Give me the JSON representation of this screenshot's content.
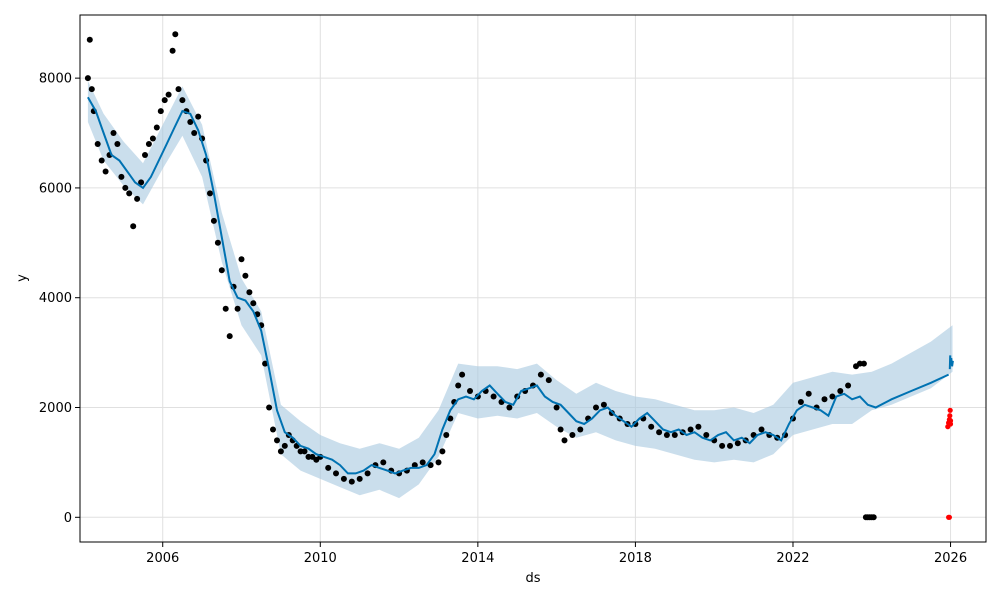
{
  "chart_data": {
    "type": "line",
    "title": "",
    "xlabel": "ds",
    "ylabel": "y",
    "xlim": [
      2003.9,
      2026.9
    ],
    "ylim": [
      -450,
      9150
    ],
    "x_ticks": [
      2006,
      2010,
      2014,
      2018,
      2022,
      2026
    ],
    "x_tick_labels": [
      "2006",
      "2010",
      "2014",
      "2018",
      "2022",
      "2026"
    ],
    "y_ticks": [
      0,
      2000,
      4000,
      6000,
      8000
    ],
    "y_tick_labels": [
      "0",
      "2000",
      "4000",
      "6000",
      "8000"
    ],
    "grid": true,
    "legend": "none",
    "colors": {
      "observed": "#000000",
      "forecast": "#0072B2",
      "interval": "#a6c8e0",
      "anomaly": "#ff0000"
    },
    "series": [
      {
        "role": "observed",
        "marker": "dot",
        "x": [
          2004.1,
          2004.15,
          2004.2,
          2004.25,
          2004.35,
          2004.45,
          2004.55,
          2004.65,
          2004.75,
          2004.85,
          2004.95,
          2005.05,
          2005.15,
          2005.25,
          2005.35,
          2005.45,
          2005.55,
          2005.65,
          2005.75,
          2005.85,
          2005.95,
          2006.05,
          2006.15,
          2006.25,
          2006.32,
          2006.4,
          2006.5,
          2006.6,
          2006.7,
          2006.8,
          2006.9,
          2007.0,
          2007.1,
          2007.2,
          2007.3,
          2007.4,
          2007.5,
          2007.6,
          2007.7,
          2007.8,
          2007.9,
          2008.0,
          2008.1,
          2008.2,
          2008.3,
          2008.4,
          2008.5,
          2008.6,
          2008.7,
          2008.8,
          2008.9,
          2009.0,
          2009.1,
          2009.2,
          2009.3,
          2009.4,
          2009.5,
          2009.6,
          2009.7,
          2009.8,
          2009.9,
          2010.0,
          2010.2,
          2010.4,
          2010.6,
          2010.8,
          2011.0,
          2011.2,
          2011.4,
          2011.6,
          2011.8,
          2012.0,
          2012.2,
          2012.4,
          2012.6,
          2012.8,
          2013.0,
          2013.1,
          2013.2,
          2013.3,
          2013.4,
          2013.5,
          2013.6,
          2013.8,
          2014.0,
          2014.2,
          2014.4,
          2014.6,
          2014.8,
          2015.0,
          2015.2,
          2015.4,
          2015.6,
          2015.8,
          2016.0,
          2016.1,
          2016.2,
          2016.4,
          2016.6,
          2016.8,
          2017.0,
          2017.2,
          2017.4,
          2017.6,
          2017.8,
          2018.0,
          2018.2,
          2018.4,
          2018.6,
          2018.8,
          2019.0,
          2019.2,
          2019.4,
          2019.6,
          2019.8,
          2020.0,
          2020.2,
          2020.4,
          2020.6,
          2020.8,
          2021.0,
          2021.2,
          2021.4,
          2021.6,
          2021.8,
          2022.0,
          2022.2,
          2022.4,
          2022.6,
          2022.8,
          2023.0,
          2023.2,
          2023.4,
          2023.6,
          2023.7,
          2023.8
        ],
        "y": [
          8000,
          8700,
          7800,
          7400,
          6800,
          6500,
          6300,
          6600,
          7000,
          6800,
          6200,
          6000,
          5900,
          5300,
          5800,
          6100,
          6600,
          6800,
          6900,
          7100,
          7400,
          7600,
          7700,
          8500,
          8800,
          7800,
          7600,
          7400,
          7200,
          7000,
          7300,
          6900,
          6500,
          5900,
          5400,
          5000,
          4500,
          3800,
          3300,
          4200,
          3800,
          4700,
          4400,
          4100,
          3900,
          3700,
          3500,
          2800,
          2000,
          1600,
          1400,
          1200,
          1300,
          1500,
          1400,
          1300,
          1200,
          1200,
          1100,
          1100,
          1050,
          1100,
          900,
          800,
          700,
          650,
          700,
          800,
          950,
          1000,
          850,
          800,
          850,
          950,
          1000,
          950,
          1000,
          1200,
          1500,
          1800,
          2100,
          2400,
          2600,
          2300,
          2200,
          2300,
          2200,
          2100,
          2000,
          2200,
          2300,
          2400,
          2600,
          2500,
          2000,
          1600,
          1400,
          1500,
          1600,
          1800,
          2000,
          2050,
          1900,
          1800,
          1700,
          1700,
          1800,
          1650,
          1550,
          1500,
          1500,
          1550,
          1600,
          1650,
          1500,
          1400,
          1300,
          1300,
          1350,
          1400,
          1500,
          1600,
          1500,
          1450,
          1500,
          1800,
          2100,
          2250,
          2000,
          2150,
          2200,
          2300,
          2400,
          2750,
          2800,
          2800
        ]
      },
      {
        "role": "observed",
        "marker": "dot",
        "x": [
          2023.85,
          2023.9,
          2023.95,
          2024.0,
          2024.05
        ],
        "y": [
          0,
          0,
          0,
          0,
          0
        ]
      },
      {
        "role": "forecast",
        "marker": "line",
        "x": [
          2004.1,
          2004.3,
          2004.5,
          2004.7,
          2004.9,
          2005.1,
          2005.3,
          2005.5,
          2005.7,
          2005.9,
          2006.1,
          2006.3,
          2006.5,
          2006.7,
          2006.9,
          2007.1,
          2007.3,
          2007.5,
          2007.7,
          2007.9,
          2008.1,
          2008.3,
          2008.5,
          2008.7,
          2008.9,
          2009.1,
          2009.3,
          2009.5,
          2009.7,
          2009.9,
          2010.1,
          2010.3,
          2010.5,
          2010.7,
          2010.9,
          2011.1,
          2011.3,
          2011.5,
          2011.7,
          2011.9,
          2012.1,
          2012.3,
          2012.5,
          2012.7,
          2012.9,
          2013.1,
          2013.3,
          2013.5,
          2013.7,
          2013.9,
          2014.1,
          2014.3,
          2014.5,
          2014.7,
          2014.9,
          2015.1,
          2015.3,
          2015.5,
          2015.7,
          2015.9,
          2016.1,
          2016.3,
          2016.5,
          2016.7,
          2016.9,
          2017.1,
          2017.3,
          2017.5,
          2017.7,
          2017.9,
          2018.1,
          2018.3,
          2018.5,
          2018.7,
          2018.9,
          2019.1,
          2019.3,
          2019.5,
          2019.7,
          2019.9,
          2020.1,
          2020.3,
          2020.5,
          2020.7,
          2020.9,
          2021.1,
          2021.3,
          2021.5,
          2021.7,
          2021.9,
          2022.1,
          2022.3,
          2022.5,
          2022.7,
          2022.9,
          2023.1,
          2023.3,
          2023.5,
          2023.7,
          2023.9,
          2024.1,
          2024.5,
          2025.0,
          2025.5,
          2025.95
        ],
        "y": [
          7650,
          7400,
          7000,
          6600,
          6500,
          6300,
          6100,
          6000,
          6200,
          6500,
          6800,
          7100,
          7400,
          7350,
          7050,
          6600,
          5900,
          5100,
          4300,
          4000,
          3950,
          3750,
          3400,
          2700,
          1950,
          1550,
          1450,
          1300,
          1250,
          1150,
          1100,
          1050,
          950,
          800,
          800,
          850,
          950,
          900,
          850,
          800,
          850,
          900,
          900,
          950,
          1150,
          1600,
          1950,
          2150,
          2200,
          2150,
          2300,
          2400,
          2250,
          2100,
          2050,
          2300,
          2350,
          2400,
          2200,
          2100,
          2050,
          1900,
          1750,
          1700,
          1800,
          1950,
          2000,
          1850,
          1750,
          1650,
          1800,
          1900,
          1750,
          1600,
          1550,
          1600,
          1500,
          1550,
          1450,
          1400,
          1500,
          1550,
          1400,
          1450,
          1350,
          1500,
          1550,
          1500,
          1400,
          1700,
          1950,
          2050,
          2000,
          1950,
          1850,
          2200,
          2250,
          2150,
          2200,
          2050,
          2000,
          2150,
          2300,
          2450,
          2600
        ]
      },
      {
        "role": "forecast",
        "marker": "line",
        "x": [
          2025.98,
          2025.99,
          2026.0,
          2026.02,
          2026.04,
          2026.06
        ],
        "y": [
          2700,
          2950,
          2800,
          2900,
          2750,
          2850
        ]
      },
      {
        "role": "anomaly",
        "marker": "dot",
        "x": [
          2025.93,
          2025.95,
          2025.97,
          2025.98,
          2025.99,
          2026.0,
          2026.0,
          2025.95,
          2025.97
        ],
        "y": [
          1650,
          1720,
          1780,
          1850,
          1950,
          1760,
          1700,
          0,
          0
        ]
      }
    ],
    "interval": {
      "x": [
        2004.1,
        2004.5,
        2005.0,
        2005.5,
        2006.0,
        2006.5,
        2007.0,
        2007.5,
        2008.0,
        2008.5,
        2009.0,
        2009.5,
        2010.0,
        2010.5,
        2011.0,
        2011.5,
        2012.0,
        2012.5,
        2013.0,
        2013.5,
        2014.0,
        2014.5,
        2015.0,
        2015.5,
        2016.0,
        2016.5,
        2017.0,
        2017.5,
        2018.0,
        2018.5,
        2019.0,
        2019.5,
        2020.0,
        2020.5,
        2021.0,
        2021.5,
        2022.0,
        2022.5,
        2023.0,
        2023.5,
        2024.0,
        2024.5,
        2025.0,
        2025.5,
        2026.05
      ],
      "upper": [
        7950,
        7350,
        6850,
        6450,
        7150,
        7850,
        7150,
        5550,
        4350,
        3750,
        2050,
        1750,
        1500,
        1350,
        1250,
        1350,
        1250,
        1450,
        1950,
        2800,
        2750,
        2750,
        2700,
        2800,
        2500,
        2250,
        2450,
        2300,
        2200,
        2150,
        2050,
        1950,
        1950,
        2000,
        1900,
        2050,
        2450,
        2550,
        2650,
        2600,
        2650,
        2800,
        3000,
        3200,
        3500
      ],
      "lower": [
        7200,
        6500,
        6050,
        5700,
        6350,
        6950,
        6200,
        4650,
        3500,
        2950,
        1150,
        850,
        700,
        550,
        400,
        500,
        350,
        600,
        1100,
        1900,
        1800,
        1850,
        1800,
        1900,
        1650,
        1450,
        1550,
        1400,
        1300,
        1250,
        1150,
        1050,
        1000,
        1050,
        1000,
        1150,
        1500,
        1600,
        1700,
        1700,
        1950,
        2050,
        2200,
        2350,
        2650
      ]
    }
  }
}
